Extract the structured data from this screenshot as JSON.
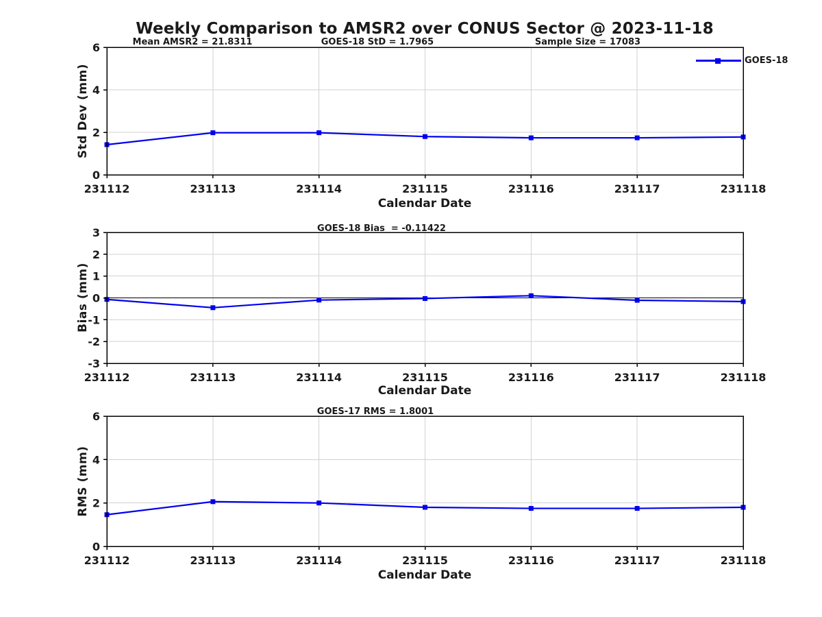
{
  "figure_title": "Weekly Comparison to AMSR2 over CONUS Sector @ 2023-11-18",
  "colors": {
    "line": "#0000EE",
    "marker": "#0000EE",
    "grid": "#D2D2D2",
    "axis": "#000000",
    "zero_line": "#000000",
    "text": "#1A1A1A",
    "background": "#FFFFFF"
  },
  "chart_data": [
    {
      "type": "line",
      "name": "std-dev",
      "annotations": [
        "Mean AMSR2 = 21.8311",
        "GOES-18 StD = 1.7965",
        "Sample Size = 17083"
      ],
      "categories": [
        "231112",
        "231113",
        "231114",
        "231115",
        "231116",
        "231117",
        "231118"
      ],
      "series": [
        {
          "name": "GOES-18",
          "values": [
            1.42,
            1.98,
            1.98,
            1.8,
            1.74,
            1.74,
            1.78
          ]
        }
      ],
      "xlabel": "Calendar Date",
      "ylabel": "Std Dev (mm)",
      "ylim": [
        0,
        6
      ],
      "yticks": [
        0,
        2,
        4,
        6
      ],
      "grid": true,
      "zero_line": false,
      "legend": {
        "label": "GOES-18",
        "position": "top-right-outside"
      }
    },
    {
      "type": "line",
      "name": "bias",
      "annotations": [
        "GOES-18 Bias  = -0.11422"
      ],
      "categories": [
        "231112",
        "231113",
        "231114",
        "231115",
        "231116",
        "231117",
        "231118"
      ],
      "series": [
        {
          "name": "GOES-18",
          "values": [
            -0.07,
            -0.45,
            -0.1,
            -0.03,
            0.1,
            -0.11,
            -0.17
          ]
        }
      ],
      "xlabel": "Calendar Date",
      "ylabel": "Bias (mm)",
      "ylim": [
        -3,
        3
      ],
      "yticks": [
        -3,
        -2,
        -1,
        0,
        1,
        2,
        3
      ],
      "grid": true,
      "zero_line": true
    },
    {
      "type": "line",
      "name": "rms",
      "annotations": [
        "GOES-17 RMS = 1.8001"
      ],
      "categories": [
        "231112",
        "231113",
        "231114",
        "231115",
        "231116",
        "231117",
        "231118"
      ],
      "series": [
        {
          "name": "GOES-18",
          "values": [
            1.46,
            2.06,
            2.0,
            1.8,
            1.75,
            1.75,
            1.8
          ]
        }
      ],
      "xlabel": "Calendar Date",
      "ylabel": "RMS (mm)",
      "ylim": [
        0,
        6
      ],
      "yticks": [
        0,
        2,
        4,
        6
      ],
      "grid": true,
      "zero_line": false
    }
  ]
}
